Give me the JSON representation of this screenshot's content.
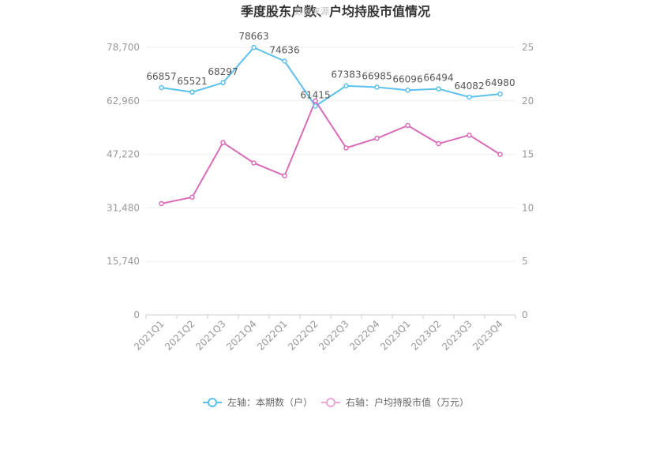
{
  "chart_data": {
    "type": "line",
    "title": "季度股东户数、户均持股市值情况",
    "watermark": "数据来源",
    "categories": [
      "2021Q1",
      "2021Q2",
      "2021Q3",
      "2021Q4",
      "2022Q1",
      "2022Q2",
      "2022Q3",
      "2022Q4",
      "2023Q1",
      "2023Q2",
      "2023Q3",
      "2023Q4"
    ],
    "y_left": {
      "min": 0,
      "max": 78700,
      "ticks": [
        "0",
        "15,740",
        "31,480",
        "47,220",
        "62,960",
        "78,700"
      ],
      "tick_values": [
        0,
        15740,
        31480,
        47220,
        62960,
        78700
      ]
    },
    "y_right": {
      "min": 0,
      "max": 25,
      "ticks": [
        "0",
        "5",
        "10",
        "15",
        "20",
        "25"
      ],
      "tick_values": [
        0,
        5,
        10,
        15,
        20,
        25
      ]
    },
    "grid": true,
    "legend_position": "bottom",
    "series": [
      {
        "name": "左轴：本期数（户）",
        "axis": "left",
        "color": "#5bc0eb",
        "values": [
          66857,
          65521,
          68297,
          78663,
          74636,
          61415,
          67383,
          66985,
          66096,
          66494,
          64082,
          64980
        ],
        "labels": [
          "66857",
          "65521",
          "68297",
          "78663",
          "74636",
          "61415",
          "67383",
          "66985",
          "66096",
          "66494",
          "64082",
          "64980"
        ]
      },
      {
        "name": "右轴：户均持股市值（万元）",
        "axis": "right",
        "color": "#d96cb8",
        "values": [
          10.4,
          11.0,
          16.1,
          14.2,
          13.0,
          20.0,
          15.6,
          16.5,
          17.7,
          16.0,
          16.8,
          15.0
        ]
      }
    ]
  }
}
